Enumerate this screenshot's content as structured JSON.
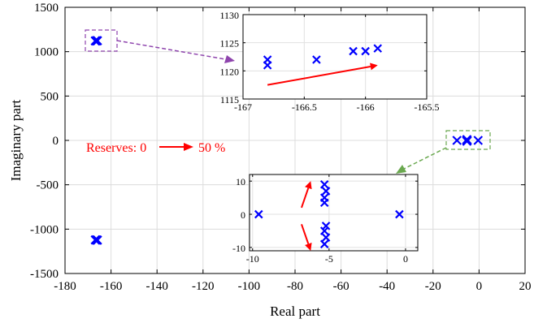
{
  "chart_data": [
    {
      "type": "scatter",
      "id": "main",
      "xlabel": "Real part",
      "ylabel": "Imaginary part",
      "xlim": [
        -180,
        20
      ],
      "ylim": [
        -1500,
        1500
      ],
      "xticks": [
        -180,
        -160,
        -140,
        -120,
        -100,
        -80,
        -60,
        -40,
        -20,
        0,
        20
      ],
      "yticks": [
        -1500,
        -1000,
        -500,
        0,
        500,
        1000,
        1500
      ],
      "grid": true,
      "marker": "x",
      "color": "#0000ff",
      "points": [
        {
          "x": -166.8,
          "y": 1121
        },
        {
          "x": -166.8,
          "y": 1122
        },
        {
          "x": -166.4,
          "y": 1122
        },
        {
          "x": -166.1,
          "y": 1123.5
        },
        {
          "x": -166.0,
          "y": 1123.5
        },
        {
          "x": -165.9,
          "y": 1124
        },
        {
          "x": -166.8,
          "y": -1121
        },
        {
          "x": -166.8,
          "y": -1122
        },
        {
          "x": -166.4,
          "y": -1122
        },
        {
          "x": -166.1,
          "y": -1123.5
        },
        {
          "x": -166.0,
          "y": -1123.5
        },
        {
          "x": -165.9,
          "y": -1124
        },
        {
          "x": -9.6,
          "y": 0
        },
        {
          "x": -5.3,
          "y": 9
        },
        {
          "x": -5.2,
          "y": 7
        },
        {
          "x": -5.3,
          "y": 5
        },
        {
          "x": -5.3,
          "y": 3.5
        },
        {
          "x": -5.2,
          "y": -3.5
        },
        {
          "x": -5.3,
          "y": -5
        },
        {
          "x": -5.2,
          "y": -7
        },
        {
          "x": -5.3,
          "y": -9
        },
        {
          "x": -0.4,
          "y": 0
        }
      ],
      "annotation": {
        "text": "Reserves: 0",
        "suffix": "50 %",
        "color": "#ff0000"
      }
    },
    {
      "type": "scatter",
      "id": "inset-top",
      "xlim": [
        -167,
        -165.5
      ],
      "ylim": [
        1115,
        1130
      ],
      "xticks": [
        -167,
        -166.5,
        -166,
        -165.5
      ],
      "yticks": [
        1115,
        1120,
        1125,
        1130
      ],
      "grid": true,
      "marker": "x",
      "color": "#0000ff",
      "points": [
        {
          "x": -166.8,
          "y": 1121
        },
        {
          "x": -166.8,
          "y": 1122
        },
        {
          "x": -166.4,
          "y": 1122
        },
        {
          "x": -166.1,
          "y": 1123.5
        },
        {
          "x": -166.0,
          "y": 1123.5
        },
        {
          "x": -165.9,
          "y": 1124
        }
      ],
      "arrow": {
        "from": [
          -166.8,
          1117.5
        ],
        "to": [
          -165.9,
          1121
        ],
        "color": "#ff0000"
      }
    },
    {
      "type": "scatter",
      "id": "inset-bottom",
      "xlim": [
        -10.2,
        0.8
      ],
      "ylim": [
        -11,
        12
      ],
      "xticks": [
        -10,
        -5,
        0
      ],
      "yticks": [
        -10,
        0,
        10
      ],
      "grid": true,
      "marker": "x",
      "color": "#0000ff",
      "points": [
        {
          "x": -9.6,
          "y": 0
        },
        {
          "x": -5.3,
          "y": 9
        },
        {
          "x": -5.2,
          "y": 7
        },
        {
          "x": -5.3,
          "y": 5
        },
        {
          "x": -5.3,
          "y": 3.5
        },
        {
          "x": -5.2,
          "y": -3.5
        },
        {
          "x": -5.3,
          "y": -5
        },
        {
          "x": -5.2,
          "y": -7
        },
        {
          "x": -5.3,
          "y": -9
        },
        {
          "x": -0.4,
          "y": 0
        }
      ],
      "arrows": [
        {
          "from": [
            -6.8,
            2
          ],
          "to": [
            -6.2,
            10
          ],
          "color": "#ff0000"
        },
        {
          "from": [
            -6.8,
            -3
          ],
          "to": [
            -6.2,
            -11
          ],
          "color": "#ff0000"
        }
      ]
    }
  ]
}
